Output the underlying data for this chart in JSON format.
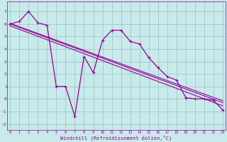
{
  "xlabel": "Windchill (Refroidissement éolien,°C)",
  "bg_color": "#c8eaea",
  "grid_color": "#a0c8c8",
  "line_color": "#960096",
  "x_main": [
    0,
    1,
    2,
    3,
    4,
    5,
    6,
    7,
    8,
    9,
    10,
    11,
    12,
    13,
    14,
    15,
    16,
    17,
    18,
    19,
    20,
    21,
    22,
    23
  ],
  "y_main": [
    6.0,
    6.2,
    7.0,
    6.1,
    5.9,
    1.0,
    1.0,
    -1.4,
    3.4,
    2.1,
    4.7,
    5.5,
    5.5,
    4.6,
    4.4,
    3.3,
    2.5,
    1.8,
    1.5,
    0.1,
    0.0,
    0.0,
    -0.1,
    -0.9
  ],
  "xlim": [
    -0.3,
    23.3
  ],
  "ylim": [
    -2.5,
    7.8
  ],
  "yticks": [
    -2,
    -1,
    0,
    1,
    2,
    3,
    4,
    5,
    6,
    7
  ],
  "xticks": [
    0,
    1,
    2,
    3,
    4,
    5,
    6,
    7,
    8,
    9,
    10,
    11,
    12,
    13,
    14,
    15,
    16,
    17,
    18,
    19,
    20,
    21,
    22,
    23
  ]
}
